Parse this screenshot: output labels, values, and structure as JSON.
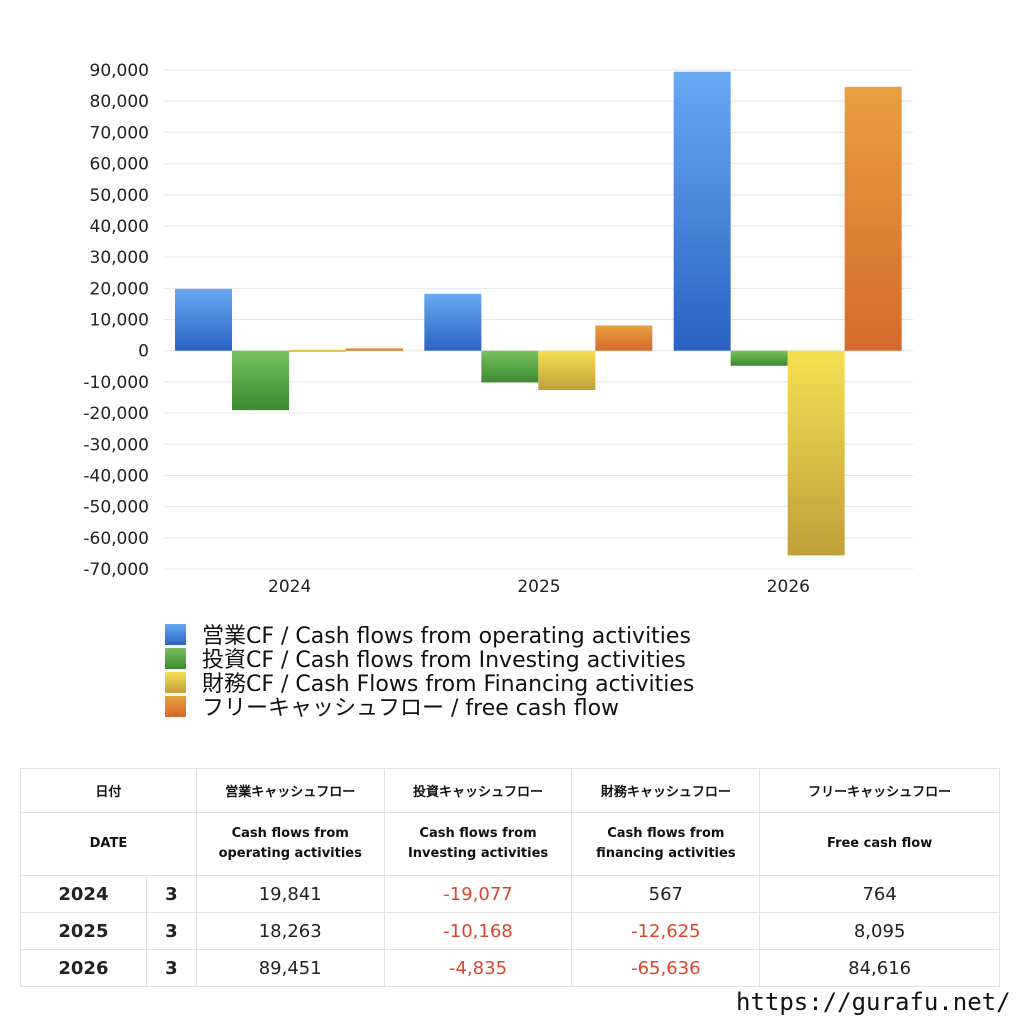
{
  "colors": {
    "operating": "#3d7ee0",
    "investing": "#4fa33f",
    "financing": "#e3cd3e",
    "free": "#de7a30",
    "negative_text": "#d9472b"
  },
  "chart_data": {
    "type": "bar",
    "categories": [
      "2024",
      "2025",
      "2026"
    ],
    "ylim": [
      -70000,
      90000
    ],
    "yticks": [
      90000,
      80000,
      70000,
      60000,
      50000,
      40000,
      30000,
      20000,
      10000,
      0,
      -10000,
      -20000,
      -30000,
      -40000,
      -50000,
      -60000,
      -70000
    ],
    "ytick_labels": [
      "90,000",
      "80,000",
      "70,000",
      "60,000",
      "50,000",
      "40,000",
      "30,000",
      "20,000",
      "10,000",
      "0",
      "-10,000",
      "-20,000",
      "-30,000",
      "-40,000",
      "-50,000",
      "-60,000",
      "-70,000"
    ],
    "grid": true,
    "legend_position": "bottom",
    "series": [
      {
        "name": "営業CF / Cash flows from operating activities",
        "values": [
          19841,
          18263,
          89451
        ]
      },
      {
        "name": "投資CF / Cash flows from Investing activities",
        "values": [
          -19077,
          -10168,
          -4835
        ]
      },
      {
        "name": "財務CF / Cash Flows from Financing activities",
        "values": [
          567,
          -12625,
          -65636
        ]
      },
      {
        "name": "フリーキャッシュフロー / free cash flow",
        "values": [
          764,
          8095,
          84616
        ]
      }
    ]
  },
  "table": {
    "header_jp": [
      "日付",
      "営業キャッシュフロー",
      "投資キャッシュフロー",
      "財務キャッシュフロー",
      "フリーキャッシュフロー"
    ],
    "header_en": [
      "DATE",
      "Cash flows from\noperating activities",
      "Cash flows from\nInvesting activities",
      "Cash flows from\nfinancing activities",
      "Free cash flow"
    ],
    "rows": [
      {
        "year": "2024",
        "month": "3",
        "operating": "19,841",
        "investing": "-19,077",
        "financing": "567",
        "free": "764"
      },
      {
        "year": "2025",
        "month": "3",
        "operating": "18,263",
        "investing": "-10,168",
        "financing": "-12,625",
        "free": "8,095"
      },
      {
        "year": "2026",
        "month": "3",
        "operating": "89,451",
        "investing": "-4,835",
        "financing": "-65,636",
        "free": "84,616"
      }
    ]
  },
  "footer": {
    "site": "https://gurafu.net/"
  }
}
